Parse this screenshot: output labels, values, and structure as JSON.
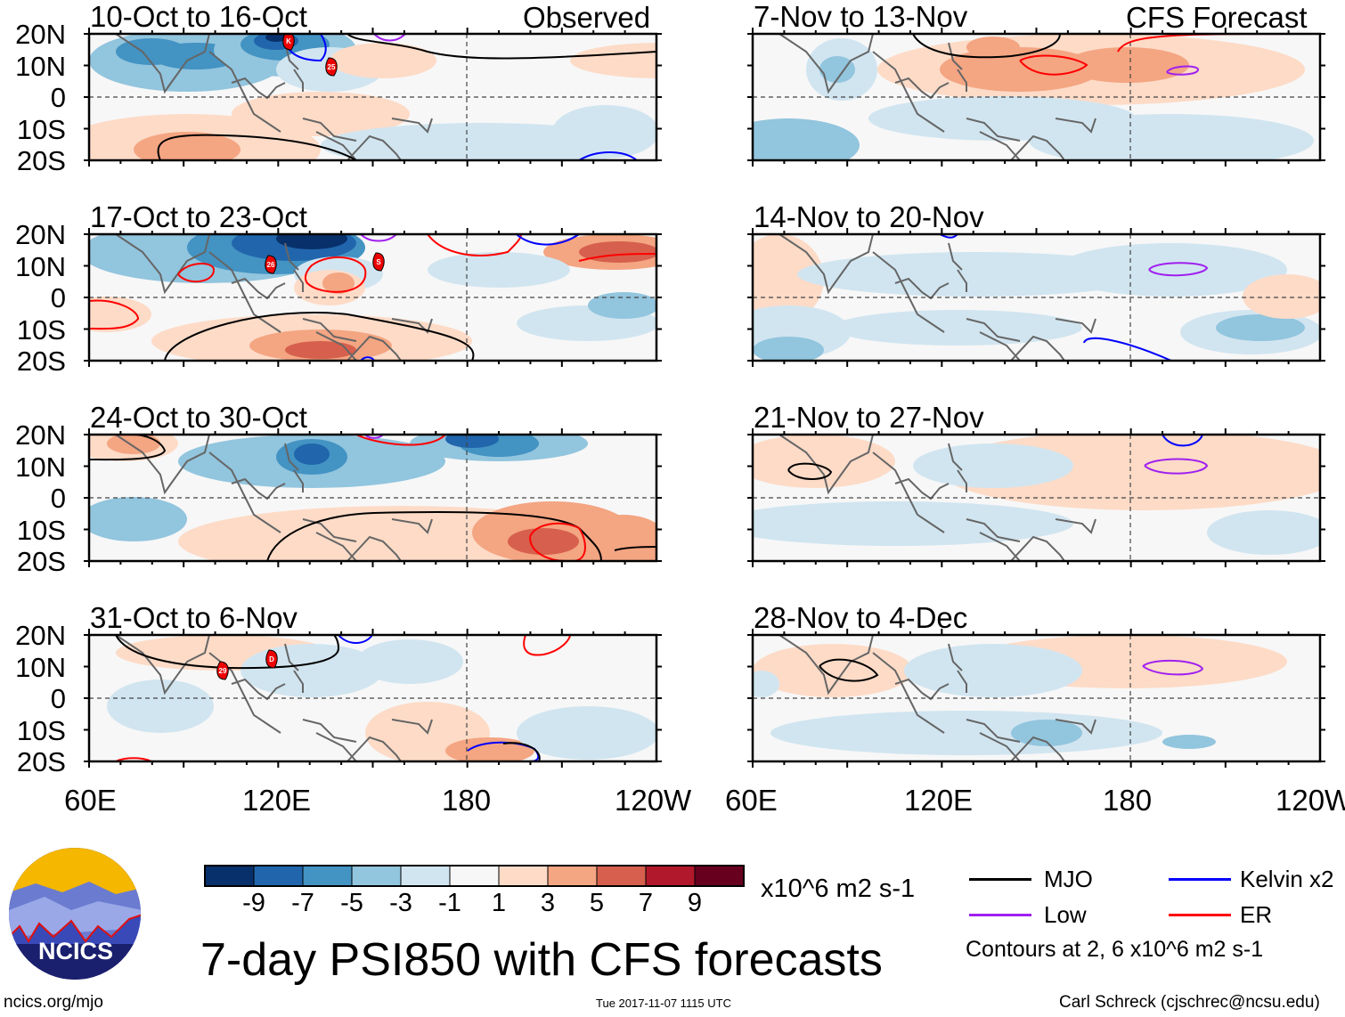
{
  "figure_title": "7-day PSI850 with CFS forecasts",
  "left_header": "Observed",
  "right_header": "CFS Forecast",
  "footer": {
    "url": "ncics.org/mjo",
    "timestamp": "Tue 2017-11-07 1115 UTC",
    "author": "Carl Schreck (cjschrec@ncsu.edu)"
  },
  "logo_text": "NCICS",
  "lat_labels": [
    "20N",
    "10N",
    "0",
    "10S",
    "20S"
  ],
  "lon_labels": [
    "60E",
    "120E",
    "180",
    "120W"
  ],
  "colorbar": {
    "ticks": [
      "-9",
      "-7",
      "-5",
      "-3",
      "-1",
      "1",
      "3",
      "5",
      "7",
      "9"
    ],
    "colors": [
      "#08306b",
      "#2166ac",
      "#4393c3",
      "#92c5de",
      "#d1e5f0",
      "#f7f7f7",
      "#fddbc7",
      "#f4a582",
      "#d6604d",
      "#b2182b",
      "#67001f"
    ],
    "units": "x10^6 m2 s-1"
  },
  "legend": {
    "items": [
      {
        "label": "MJO",
        "color": "#000000"
      },
      {
        "label": "Kelvin x2",
        "color": "#0000ff"
      },
      {
        "label": "Low",
        "color": "#a020f0"
      },
      {
        "label": "ER",
        "color": "#ff0000"
      }
    ],
    "note": "Contours at 2, 6 x10^6 m2 s-1"
  },
  "chart_data": {
    "type": "heatmap",
    "variable": "7-day PSI850 anomaly",
    "units": "x10^6 m2 s-1",
    "lon_range": [
      "60E",
      "120W"
    ],
    "lat_range": [
      "20S",
      "20N"
    ],
    "panels": [
      {
        "title": "10-Oct to 16-Oct",
        "type": "Observed",
        "storms": [
          "K",
          "25"
        ]
      },
      {
        "title": "17-Oct to 23-Oct",
        "type": "Observed",
        "storms": [
          "26",
          "S"
        ]
      },
      {
        "title": "24-Oct to 30-Oct",
        "type": "Observed",
        "storms": []
      },
      {
        "title": "31-Oct to 6-Nov",
        "type": "Observed",
        "storms": [
          "29",
          "D"
        ]
      },
      {
        "title": "7-Nov to 13-Nov",
        "type": "CFS Forecast",
        "storms": []
      },
      {
        "title": "14-Nov to 20-Nov",
        "type": "CFS Forecast",
        "storms": []
      },
      {
        "title": "21-Nov to 27-Nov",
        "type": "CFS Forecast",
        "storms": []
      },
      {
        "title": "28-Nov to 4-Dec",
        "type": "CFS Forecast",
        "storms": []
      }
    ]
  }
}
